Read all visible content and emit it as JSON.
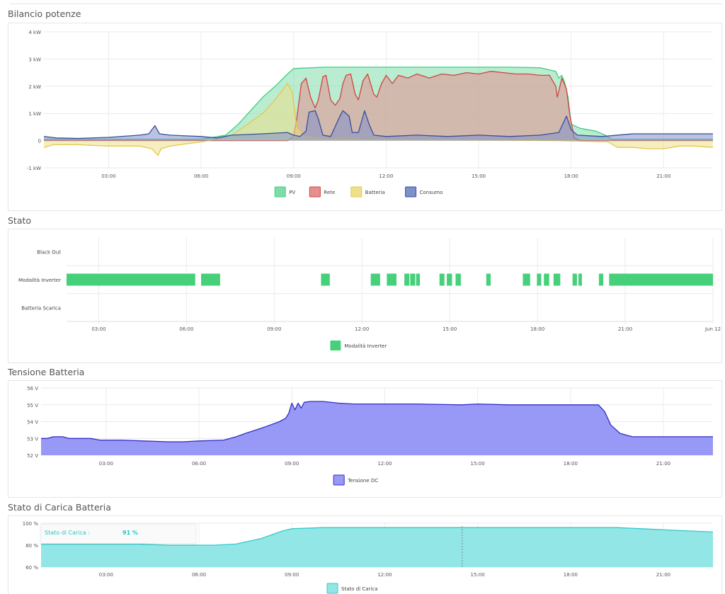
{
  "sections": {
    "power_title": "Bilancio potenze",
    "state_title": "Stato",
    "voltage_title": "Tensione Batteria",
    "soc_title": "Stato di Carica Batteria"
  },
  "tooltip": {
    "label": "Stato di Carica :",
    "value": "91 %"
  },
  "colors": {
    "pv": "#7fdcaa",
    "pv_line": "#3ccf83",
    "rete": "#e58f8f",
    "rete_line": "#d0453f",
    "batteria": "#ede08a",
    "batteria_line": "#e5c84a",
    "consumo": "#7f90c9",
    "consumo_line": "#3b4e9d",
    "inverter": "#46d07a",
    "tensione": "#9898f7",
    "tensione_line": "#3030c8",
    "soc": "#92e6e6",
    "soc_line": "#35c9c9",
    "tooltip_text": "#28c4c4"
  },
  "chart_data": [
    {
      "type": "area",
      "title": "Bilancio potenze",
      "x_unit": "hour of day",
      "xlim": [
        0.9,
        22.6
      ],
      "xticks": [
        "03:00",
        "06:00",
        "09:00",
        "12:00",
        "15:00",
        "18:00",
        "21:00"
      ],
      "xtick_values": [
        3,
        6,
        9,
        12,
        15,
        18,
        21
      ],
      "ylim": [
        -1,
        4
      ],
      "yticks": [
        "-1 kW",
        "0",
        "1 kW",
        "2 kW",
        "3 kW",
        "4 kW"
      ],
      "ytick_values": [
        -1,
        0,
        1,
        2,
        3,
        4
      ],
      "legend_position": "bottom",
      "series": [
        {
          "name": "PV",
          "color_key": "pv",
          "points": [
            [
              0.9,
              0.05
            ],
            [
              6.0,
              0.05
            ],
            [
              6.8,
              0.2
            ],
            [
              7.2,
              0.6
            ],
            [
              7.6,
              1.1
            ],
            [
              8.0,
              1.6
            ],
            [
              8.4,
              2.0
            ],
            [
              8.8,
              2.45
            ],
            [
              9.0,
              2.65
            ],
            [
              10.0,
              2.7
            ],
            [
              11.0,
              2.7
            ],
            [
              12.0,
              2.7
            ],
            [
              13.0,
              2.7
            ],
            [
              14.0,
              2.7
            ],
            [
              15.0,
              2.7
            ],
            [
              16.0,
              2.7
            ],
            [
              17.0,
              2.68
            ],
            [
              17.5,
              2.55
            ],
            [
              17.6,
              2.3
            ],
            [
              17.7,
              2.4
            ],
            [
              17.8,
              2.1
            ],
            [
              17.9,
              1.6
            ],
            [
              18.0,
              0.6
            ],
            [
              18.3,
              0.45
            ],
            [
              18.8,
              0.35
            ],
            [
              19.1,
              0.2
            ],
            [
              19.3,
              0.05
            ],
            [
              22.6,
              0.05
            ]
          ]
        },
        {
          "name": "Rete",
          "color_key": "rete",
          "points": [
            [
              0.9,
              0.0
            ],
            [
              8.8,
              0.0
            ],
            [
              9.0,
              0.15
            ],
            [
              9.1,
              0.8
            ],
            [
              9.25,
              2.1
            ],
            [
              9.4,
              2.3
            ],
            [
              9.55,
              1.6
            ],
            [
              9.7,
              1.2
            ],
            [
              9.8,
              1.5
            ],
            [
              9.95,
              2.35
            ],
            [
              10.05,
              2.4
            ],
            [
              10.2,
              1.5
            ],
            [
              10.35,
              1.3
            ],
            [
              10.5,
              1.55
            ],
            [
              10.6,
              2.1
            ],
            [
              10.7,
              2.4
            ],
            [
              10.85,
              2.45
            ],
            [
              11.0,
              1.7
            ],
            [
              11.1,
              1.5
            ],
            [
              11.25,
              2.2
            ],
            [
              11.4,
              2.45
            ],
            [
              11.6,
              1.7
            ],
            [
              11.7,
              1.6
            ],
            [
              11.85,
              2.1
            ],
            [
              12.0,
              2.4
            ],
            [
              12.2,
              2.1
            ],
            [
              12.4,
              2.4
            ],
            [
              12.7,
              2.3
            ],
            [
              13.0,
              2.45
            ],
            [
              13.4,
              2.3
            ],
            [
              13.8,
              2.45
            ],
            [
              14.2,
              2.4
            ],
            [
              14.6,
              2.5
            ],
            [
              15.0,
              2.45
            ],
            [
              15.4,
              2.55
            ],
            [
              15.8,
              2.5
            ],
            [
              16.2,
              2.45
            ],
            [
              16.6,
              2.45
            ],
            [
              17.0,
              2.4
            ],
            [
              17.3,
              2.4
            ],
            [
              17.5,
              2.0
            ],
            [
              17.55,
              1.6
            ],
            [
              17.7,
              2.3
            ],
            [
              17.85,
              1.9
            ],
            [
              17.95,
              1.0
            ],
            [
              18.1,
              0.1
            ],
            [
              18.3,
              0.0
            ],
            [
              22.6,
              0.0
            ]
          ]
        },
        {
          "name": "Batteria",
          "color_key": "batteria",
          "points": [
            [
              0.9,
              -0.25
            ],
            [
              1.2,
              -0.15
            ],
            [
              2.0,
              -0.15
            ],
            [
              3.0,
              -0.2
            ],
            [
              4.0,
              -0.2
            ],
            [
              4.4,
              -0.3
            ],
            [
              4.6,
              -0.55
            ],
            [
              4.7,
              -0.3
            ],
            [
              5.0,
              -0.2
            ],
            [
              5.5,
              -0.12
            ],
            [
              6.0,
              -0.05
            ],
            [
              6.5,
              0.05
            ],
            [
              7.0,
              0.2
            ],
            [
              7.5,
              0.6
            ],
            [
              8.0,
              1.0
            ],
            [
              8.4,
              1.5
            ],
            [
              8.8,
              2.1
            ],
            [
              8.95,
              1.8
            ],
            [
              9.1,
              0.5
            ],
            [
              9.3,
              0.2
            ],
            [
              10.0,
              0.1
            ],
            [
              12.0,
              0.05
            ],
            [
              17.5,
              0.0
            ],
            [
              19.2,
              -0.05
            ],
            [
              19.5,
              -0.25
            ],
            [
              20.0,
              -0.25
            ],
            [
              20.5,
              -0.3
            ],
            [
              21.0,
              -0.3
            ],
            [
              21.5,
              -0.2
            ],
            [
              22.0,
              -0.2
            ],
            [
              22.6,
              -0.25
            ]
          ]
        },
        {
          "name": "Consumo",
          "color_key": "consumo",
          "points": [
            [
              0.9,
              0.15
            ],
            [
              1.3,
              0.1
            ],
            [
              2.0,
              0.08
            ],
            [
              3.0,
              0.12
            ],
            [
              4.0,
              0.2
            ],
            [
              4.3,
              0.25
            ],
            [
              4.5,
              0.55
            ],
            [
              4.65,
              0.25
            ],
            [
              5.0,
              0.2
            ],
            [
              6.0,
              0.15
            ],
            [
              6.5,
              0.1
            ],
            [
              7.0,
              0.2
            ],
            [
              8.0,
              0.25
            ],
            [
              8.8,
              0.3
            ],
            [
              9.0,
              0.2
            ],
            [
              9.2,
              0.15
            ],
            [
              9.4,
              0.35
            ],
            [
              9.5,
              1.05
            ],
            [
              9.7,
              1.1
            ],
            [
              9.8,
              0.8
            ],
            [
              9.95,
              0.2
            ],
            [
              10.2,
              0.15
            ],
            [
              10.5,
              0.9
            ],
            [
              10.6,
              1.1
            ],
            [
              10.8,
              0.9
            ],
            [
              10.9,
              0.3
            ],
            [
              11.1,
              0.3
            ],
            [
              11.3,
              1.1
            ],
            [
              11.45,
              0.6
            ],
            [
              11.6,
              0.2
            ],
            [
              12.0,
              0.15
            ],
            [
              13.0,
              0.2
            ],
            [
              14.0,
              0.15
            ],
            [
              15.0,
              0.2
            ],
            [
              16.0,
              0.15
            ],
            [
              17.0,
              0.2
            ],
            [
              17.6,
              0.3
            ],
            [
              17.85,
              0.9
            ],
            [
              18.0,
              0.4
            ],
            [
              18.2,
              0.2
            ],
            [
              19.0,
              0.15
            ],
            [
              20.0,
              0.25
            ],
            [
              21.0,
              0.25
            ],
            [
              22.6,
              0.25
            ]
          ]
        }
      ]
    },
    {
      "type": "timeline",
      "title": "Stato",
      "categories": [
        "Black Out",
        "Modalità Inverter",
        "Batteria Scarica"
      ],
      "xlim": [
        1.9,
        24.0
      ],
      "xticks": [
        "03:00",
        "06:00",
        "09:00",
        "12:00",
        "15:00",
        "18:00",
        "21:00",
        "Jun 12"
      ],
      "xtick_values": [
        3,
        6,
        9,
        12,
        15,
        18,
        21,
        24
      ],
      "legend_position": "bottom",
      "series": [
        {
          "name": "Modalità Inverter",
          "color_key": "inverter",
          "category": "Modalità Inverter",
          "intervals": [
            [
              1.9,
              6.3
            ],
            [
              6.5,
              7.15
            ],
            [
              10.6,
              10.9
            ],
            [
              12.3,
              12.62
            ],
            [
              12.85,
              13.18
            ],
            [
              13.45,
              13.62
            ],
            [
              13.65,
              13.82
            ],
            [
              13.85,
              13.98
            ],
            [
              14.65,
              14.82
            ],
            [
              14.9,
              15.08
            ],
            [
              15.2,
              15.38
            ],
            [
              16.25,
              16.4
            ],
            [
              17.5,
              17.75
            ],
            [
              17.98,
              18.13
            ],
            [
              18.22,
              18.4
            ],
            [
              18.55,
              18.78
            ],
            [
              19.2,
              19.35
            ],
            [
              19.4,
              19.52
            ],
            [
              20.1,
              20.25
            ],
            [
              20.45,
              24.0
            ]
          ]
        }
      ]
    },
    {
      "type": "area",
      "title": "Tensione Batteria",
      "xlim": [
        0.9,
        22.6
      ],
      "xticks": [
        "03:00",
        "06:00",
        "09:00",
        "12:00",
        "15:00",
        "18:00",
        "21:00"
      ],
      "xtick_values": [
        3,
        6,
        9,
        12,
        15,
        18,
        21
      ],
      "ylim": [
        52,
        56
      ],
      "yticks": [
        "52 V",
        "53 V",
        "54 V",
        "55 V",
        "56 V"
      ],
      "ytick_values": [
        52,
        53,
        54,
        55,
        56
      ],
      "legend_position": "bottom",
      "series": [
        {
          "name": "Tensione DC",
          "color_key": "tensione",
          "points": [
            [
              0.9,
              53.0
            ],
            [
              1.1,
              53.0
            ],
            [
              1.3,
              53.1
            ],
            [
              1.6,
              53.1
            ],
            [
              1.8,
              53.0
            ],
            [
              2.5,
              53.0
            ],
            [
              2.8,
              52.9
            ],
            [
              3.5,
              52.9
            ],
            [
              4.2,
              52.85
            ],
            [
              5.0,
              52.8
            ],
            [
              5.5,
              52.8
            ],
            [
              6.0,
              52.85
            ],
            [
              6.8,
              52.9
            ],
            [
              7.2,
              53.1
            ],
            [
              7.5,
              53.3
            ],
            [
              8.0,
              53.6
            ],
            [
              8.3,
              53.8
            ],
            [
              8.6,
              54.0
            ],
            [
              8.8,
              54.2
            ],
            [
              8.9,
              54.5
            ],
            [
              9.0,
              55.1
            ],
            [
              9.1,
              54.7
            ],
            [
              9.2,
              55.1
            ],
            [
              9.3,
              54.8
            ],
            [
              9.4,
              55.15
            ],
            [
              9.6,
              55.2
            ],
            [
              10.0,
              55.2
            ],
            [
              10.5,
              55.1
            ],
            [
              11.0,
              55.05
            ],
            [
              13.0,
              55.05
            ],
            [
              14.5,
              55.0
            ],
            [
              15.0,
              55.05
            ],
            [
              16.0,
              55.0
            ],
            [
              17.0,
              55.0
            ],
            [
              18.0,
              55.0
            ],
            [
              18.5,
              55.0
            ],
            [
              18.9,
              55.0
            ],
            [
              19.1,
              54.6
            ],
            [
              19.3,
              53.8
            ],
            [
              19.6,
              53.3
            ],
            [
              19.8,
              53.2
            ],
            [
              20.0,
              53.1
            ],
            [
              21.0,
              53.1
            ],
            [
              22.6,
              53.1
            ]
          ]
        }
      ]
    },
    {
      "type": "area",
      "title": "Stato di Carica Batteria",
      "xlim": [
        0.9,
        22.6
      ],
      "xticks": [
        "03:00",
        "06:00",
        "09:00",
        "12:00",
        "15:00",
        "18:00",
        "21:00"
      ],
      "xtick_values": [
        3,
        6,
        9,
        12,
        15,
        18,
        21
      ],
      "ylim": [
        60,
        100
      ],
      "yticks": [
        "60 %",
        "80 %",
        "100 %"
      ],
      "ytick_values": [
        60,
        80,
        100
      ],
      "legend_position": "bottom",
      "series": [
        {
          "name": "Stato di Carica",
          "color_key": "soc",
          "points": [
            [
              0.9,
              81
            ],
            [
              4.0,
              81
            ],
            [
              5.0,
              80
            ],
            [
              6.5,
              80
            ],
            [
              7.2,
              81
            ],
            [
              8.0,
              86
            ],
            [
              8.7,
              93
            ],
            [
              9.0,
              95
            ],
            [
              10.0,
              96
            ],
            [
              12.0,
              96
            ],
            [
              15.0,
              96
            ],
            [
              18.0,
              96
            ],
            [
              19.5,
              96
            ],
            [
              20.3,
              95
            ],
            [
              21.0,
              94
            ],
            [
              21.8,
              93
            ],
            [
              22.6,
              92
            ]
          ]
        }
      ]
    }
  ]
}
